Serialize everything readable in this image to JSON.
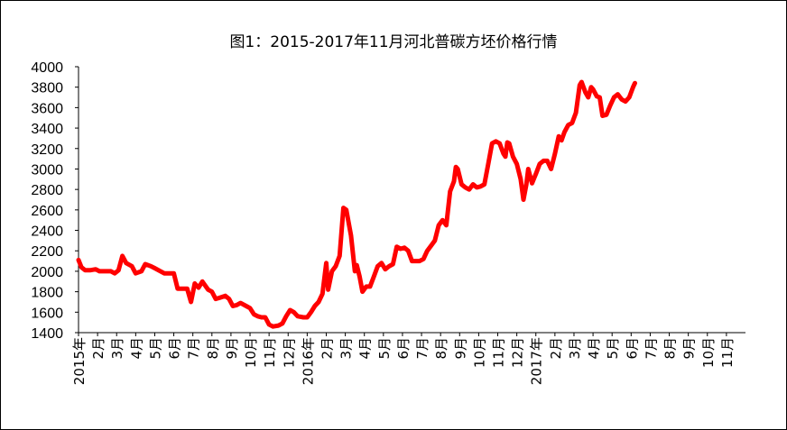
{
  "chart_data": {
    "type": "line",
    "title": "图1：2015-2017年11月河北普碳方坯价格行情",
    "xlabel": "",
    "ylabel": "",
    "ylim": [
      1400,
      4000
    ],
    "yticks": [
      1400,
      1600,
      1800,
      2000,
      2200,
      2400,
      2600,
      2800,
      3000,
      3200,
      3400,
      3600,
      3800,
      4000
    ],
    "xticks": [
      {
        "label": "2015年",
        "month": 0
      },
      {
        "label": "2月",
        "month": 1
      },
      {
        "label": "3月",
        "month": 2
      },
      {
        "label": "4月",
        "month": 3
      },
      {
        "label": "5月",
        "month": 4
      },
      {
        "label": "6月",
        "month": 5
      },
      {
        "label": "7月",
        "month": 6
      },
      {
        "label": "8月",
        "month": 7
      },
      {
        "label": "9月",
        "month": 8
      },
      {
        "label": "10月",
        "month": 9
      },
      {
        "label": "11月",
        "month": 10
      },
      {
        "label": "12月",
        "month": 11
      },
      {
        "label": "2016年",
        "month": 12
      },
      {
        "label": "2月",
        "month": 13
      },
      {
        "label": "3月",
        "month": 14
      },
      {
        "label": "4月",
        "month": 15
      },
      {
        "label": "5月",
        "month": 16
      },
      {
        "label": "6月",
        "month": 17
      },
      {
        "label": "7月",
        "month": 18
      },
      {
        "label": "8月",
        "month": 19
      },
      {
        "label": "9月",
        "month": 20
      },
      {
        "label": "10月",
        "month": 21
      },
      {
        "label": "11月",
        "month": 22
      },
      {
        "label": "12月",
        "month": 23
      },
      {
        "label": "2017年",
        "month": 24
      },
      {
        "label": "2月",
        "month": 25
      },
      {
        "label": "3月",
        "month": 26
      },
      {
        "label": "4月",
        "month": 27
      },
      {
        "label": "5月",
        "month": 28
      },
      {
        "label": "6月",
        "month": 29
      },
      {
        "label": "7月",
        "month": 30
      },
      {
        "label": "8月",
        "month": 31
      },
      {
        "label": "9月",
        "month": 32
      },
      {
        "label": "10月",
        "month": 33
      },
      {
        "label": "11月",
        "month": 34
      }
    ],
    "xlim": [
      0,
      35
    ],
    "series": [
      {
        "color": "#ff0000",
        "points": [
          [
            0.0,
            2110
          ],
          [
            0.15,
            2040
          ],
          [
            0.35,
            2010
          ],
          [
            0.6,
            2010
          ],
          [
            0.9,
            2020
          ],
          [
            1.1,
            2000
          ],
          [
            1.4,
            2000
          ],
          [
            1.7,
            2000
          ],
          [
            1.9,
            1980
          ],
          [
            2.1,
            2010
          ],
          [
            2.3,
            2150
          ],
          [
            2.5,
            2080
          ],
          [
            2.8,
            2050
          ],
          [
            3.0,
            1980
          ],
          [
            3.3,
            2000
          ],
          [
            3.5,
            2070
          ],
          [
            3.8,
            2050
          ],
          [
            4.0,
            2030
          ],
          [
            4.3,
            2000
          ],
          [
            4.5,
            1980
          ],
          [
            4.7,
            1980
          ],
          [
            5.0,
            1980
          ],
          [
            5.2,
            1830
          ],
          [
            5.4,
            1830
          ],
          [
            5.7,
            1830
          ],
          [
            5.9,
            1700
          ],
          [
            6.1,
            1880
          ],
          [
            6.3,
            1840
          ],
          [
            6.5,
            1900
          ],
          [
            6.8,
            1820
          ],
          [
            7.0,
            1800
          ],
          [
            7.2,
            1730
          ],
          [
            7.4,
            1740
          ],
          [
            7.7,
            1760
          ],
          [
            7.9,
            1730
          ],
          [
            8.1,
            1660
          ],
          [
            8.3,
            1670
          ],
          [
            8.5,
            1690
          ],
          [
            8.8,
            1660
          ],
          [
            9.0,
            1640
          ],
          [
            9.2,
            1580
          ],
          [
            9.4,
            1560
          ],
          [
            9.6,
            1550
          ],
          [
            9.8,
            1550
          ],
          [
            10.0,
            1480
          ],
          [
            10.2,
            1460
          ],
          [
            10.5,
            1470
          ],
          [
            10.7,
            1490
          ],
          [
            10.9,
            1560
          ],
          [
            11.1,
            1620
          ],
          [
            11.3,
            1600
          ],
          [
            11.5,
            1560
          ],
          [
            11.8,
            1550
          ],
          [
            12.0,
            1550
          ],
          [
            12.2,
            1600
          ],
          [
            12.4,
            1660
          ],
          [
            12.6,
            1700
          ],
          [
            12.8,
            1780
          ],
          [
            13.0,
            2080
          ],
          [
            13.1,
            1820
          ],
          [
            13.3,
            2000
          ],
          [
            13.5,
            2050
          ],
          [
            13.7,
            2150
          ],
          [
            13.9,
            2620
          ],
          [
            14.05,
            2600
          ],
          [
            14.3,
            2350
          ],
          [
            14.5,
            2000
          ],
          [
            14.6,
            2060
          ],
          [
            14.75,
            1950
          ],
          [
            14.9,
            1800
          ],
          [
            15.1,
            1850
          ],
          [
            15.3,
            1850
          ],
          [
            15.5,
            1950
          ],
          [
            15.7,
            2050
          ],
          [
            15.9,
            2080
          ],
          [
            16.1,
            2020
          ],
          [
            16.3,
            2050
          ],
          [
            16.5,
            2070
          ],
          [
            16.7,
            2240
          ],
          [
            16.9,
            2220
          ],
          [
            17.1,
            2230
          ],
          [
            17.3,
            2200
          ],
          [
            17.5,
            2100
          ],
          [
            17.7,
            2100
          ],
          [
            17.9,
            2100
          ],
          [
            18.1,
            2120
          ],
          [
            18.3,
            2200
          ],
          [
            18.5,
            2250
          ],
          [
            18.7,
            2300
          ],
          [
            18.9,
            2450
          ],
          [
            19.1,
            2500
          ],
          [
            19.3,
            2450
          ],
          [
            19.5,
            2780
          ],
          [
            19.7,
            2880
          ],
          [
            19.8,
            3020
          ],
          [
            19.9,
            3000
          ],
          [
            20.1,
            2850
          ],
          [
            20.3,
            2820
          ],
          [
            20.5,
            2800
          ],
          [
            20.7,
            2850
          ],
          [
            20.9,
            2820
          ],
          [
            21.1,
            2830
          ],
          [
            21.3,
            2850
          ],
          [
            21.5,
            3050
          ],
          [
            21.7,
            3250
          ],
          [
            21.9,
            3270
          ],
          [
            22.1,
            3250
          ],
          [
            22.3,
            3150
          ],
          [
            22.4,
            3120
          ],
          [
            22.5,
            3260
          ],
          [
            22.6,
            3250
          ],
          [
            22.8,
            3120
          ],
          [
            23.0,
            3050
          ],
          [
            23.2,
            2900
          ],
          [
            23.35,
            2700
          ],
          [
            23.5,
            2850
          ],
          [
            23.6,
            3000
          ],
          [
            23.8,
            2860
          ],
          [
            24.0,
            2950
          ],
          [
            24.2,
            3050
          ],
          [
            24.4,
            3080
          ],
          [
            24.6,
            3080
          ],
          [
            24.8,
            3000
          ],
          [
            25.0,
            3150
          ],
          [
            25.2,
            3320
          ],
          [
            25.35,
            3280
          ],
          [
            25.5,
            3360
          ],
          [
            25.7,
            3430
          ],
          [
            25.9,
            3450
          ],
          [
            26.1,
            3550
          ],
          [
            26.3,
            3820
          ],
          [
            26.4,
            3850
          ],
          [
            26.6,
            3750
          ],
          [
            26.75,
            3700
          ],
          [
            26.9,
            3800
          ],
          [
            27.0,
            3780
          ],
          [
            27.2,
            3710
          ],
          [
            27.35,
            3700
          ],
          [
            27.5,
            3520
          ],
          [
            27.7,
            3530
          ],
          [
            27.9,
            3620
          ],
          [
            28.1,
            3700
          ],
          [
            28.3,
            3730
          ],
          [
            28.5,
            3680
          ],
          [
            28.7,
            3660
          ],
          [
            28.9,
            3700
          ],
          [
            29.1,
            3800
          ],
          [
            29.2,
            3840
          ]
        ]
      }
    ]
  }
}
